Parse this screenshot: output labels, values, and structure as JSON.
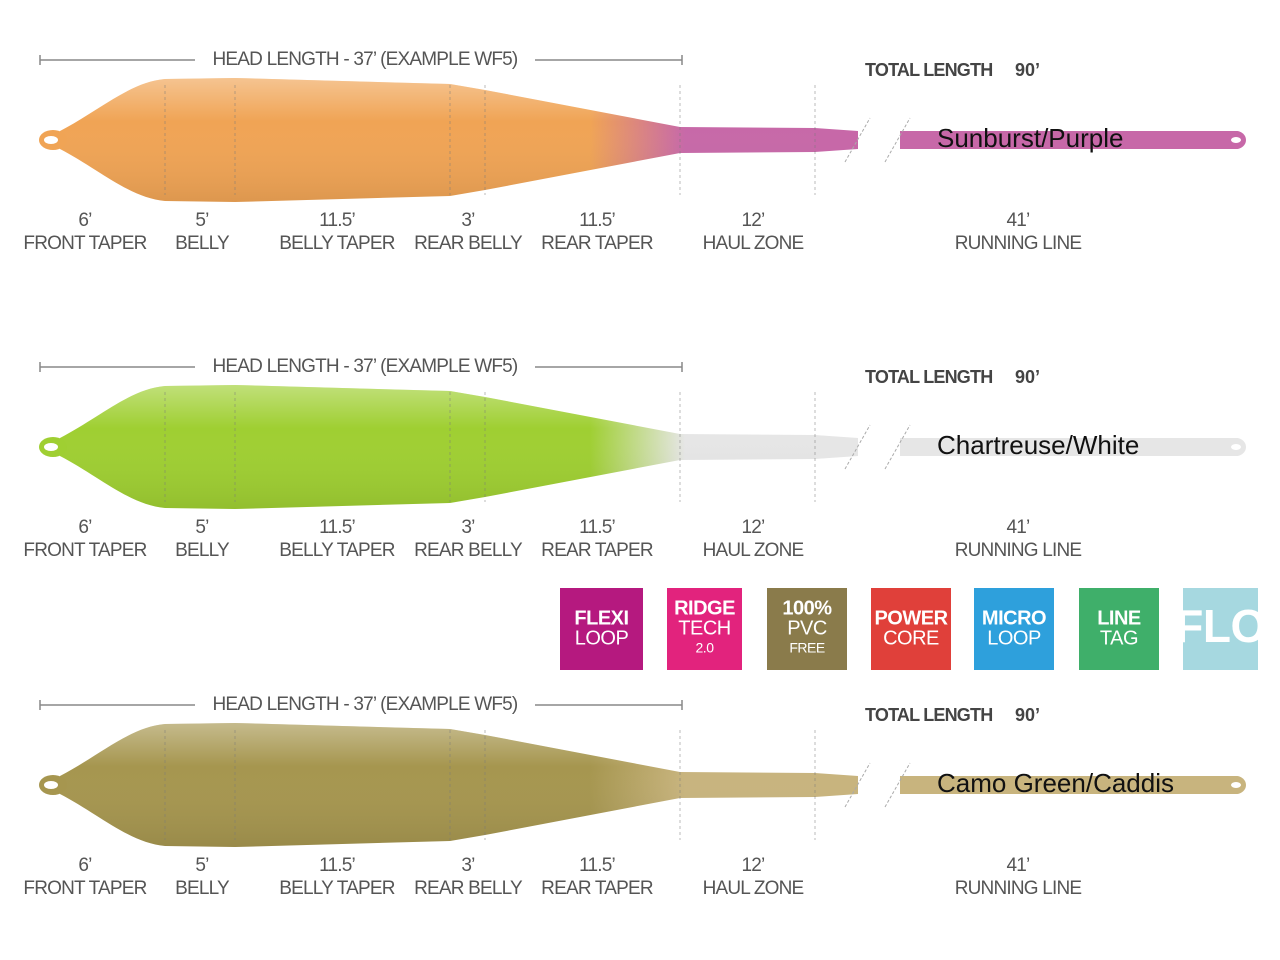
{
  "diagrams": [
    {
      "head_length": "HEAD LENGTH - 37’ (EXAMPLE WF5)",
      "total_length_label": "TOTAL LENGTH",
      "total_length": "90’",
      "color_name": "Sunburst/Purple",
      "segments": [
        {
          "length": "6’",
          "name": "FRONT TAPER"
        },
        {
          "length": "5’",
          "name": "BELLY"
        },
        {
          "length": "11.5’",
          "name": "BELLY TAPER"
        },
        {
          "length": "3’",
          "name": "REAR BELLY"
        },
        {
          "length": "11.5’",
          "name": "REAR TAPER"
        },
        {
          "length": "12’",
          "name": "HAUL ZONE"
        },
        {
          "length": "41’",
          "name": "RUNNING LINE"
        }
      ]
    },
    {
      "head_length": "HEAD LENGTH - 37’ (EXAMPLE WF5)",
      "total_length_label": "TOTAL LENGTH",
      "total_length": "90’",
      "color_name": "Chartreuse/White",
      "segments": [
        {
          "length": "6’",
          "name": "FRONT TAPER"
        },
        {
          "length": "5’",
          "name": "BELLY"
        },
        {
          "length": "11.5’",
          "name": "BELLY TAPER"
        },
        {
          "length": "3’",
          "name": "REAR BELLY"
        },
        {
          "length": "11.5’",
          "name": "REAR TAPER"
        },
        {
          "length": "12’",
          "name": "HAUL ZONE"
        },
        {
          "length": "41’",
          "name": "RUNNING LINE"
        }
      ]
    },
    {
      "head_length": "HEAD LENGTH - 37’ (EXAMPLE WF5)",
      "total_length_label": "TOTAL LENGTH",
      "total_length": "90’",
      "color_name": "Camo Green/Caddis",
      "segments": [
        {
          "length": "6’",
          "name": "FRONT TAPER"
        },
        {
          "length": "5’",
          "name": "BELLY"
        },
        {
          "length": "11.5’",
          "name": "BELLY TAPER"
        },
        {
          "length": "3’",
          "name": "REAR BELLY"
        },
        {
          "length": "11.5’",
          "name": "REAR TAPER"
        },
        {
          "length": "12’",
          "name": "HAUL ZONE"
        },
        {
          "length": "41’",
          "name": "RUNNING LINE"
        }
      ]
    }
  ],
  "badges": [
    {
      "lines": [
        "FLEXI",
        "LOOP"
      ]
    },
    {
      "lines": [
        "RIDGE",
        "TECH",
        "2.0"
      ]
    },
    {
      "lines": [
        "100%",
        "PVC",
        "FREE"
      ]
    },
    {
      "lines": [
        "POWER",
        "CORE"
      ]
    },
    {
      "lines": [
        "MICRO",
        "LOOP"
      ]
    },
    {
      "lines": [
        "LINE",
        "TAG"
      ]
    },
    {
      "lines": [
        "FLO"
      ]
    }
  ]
}
